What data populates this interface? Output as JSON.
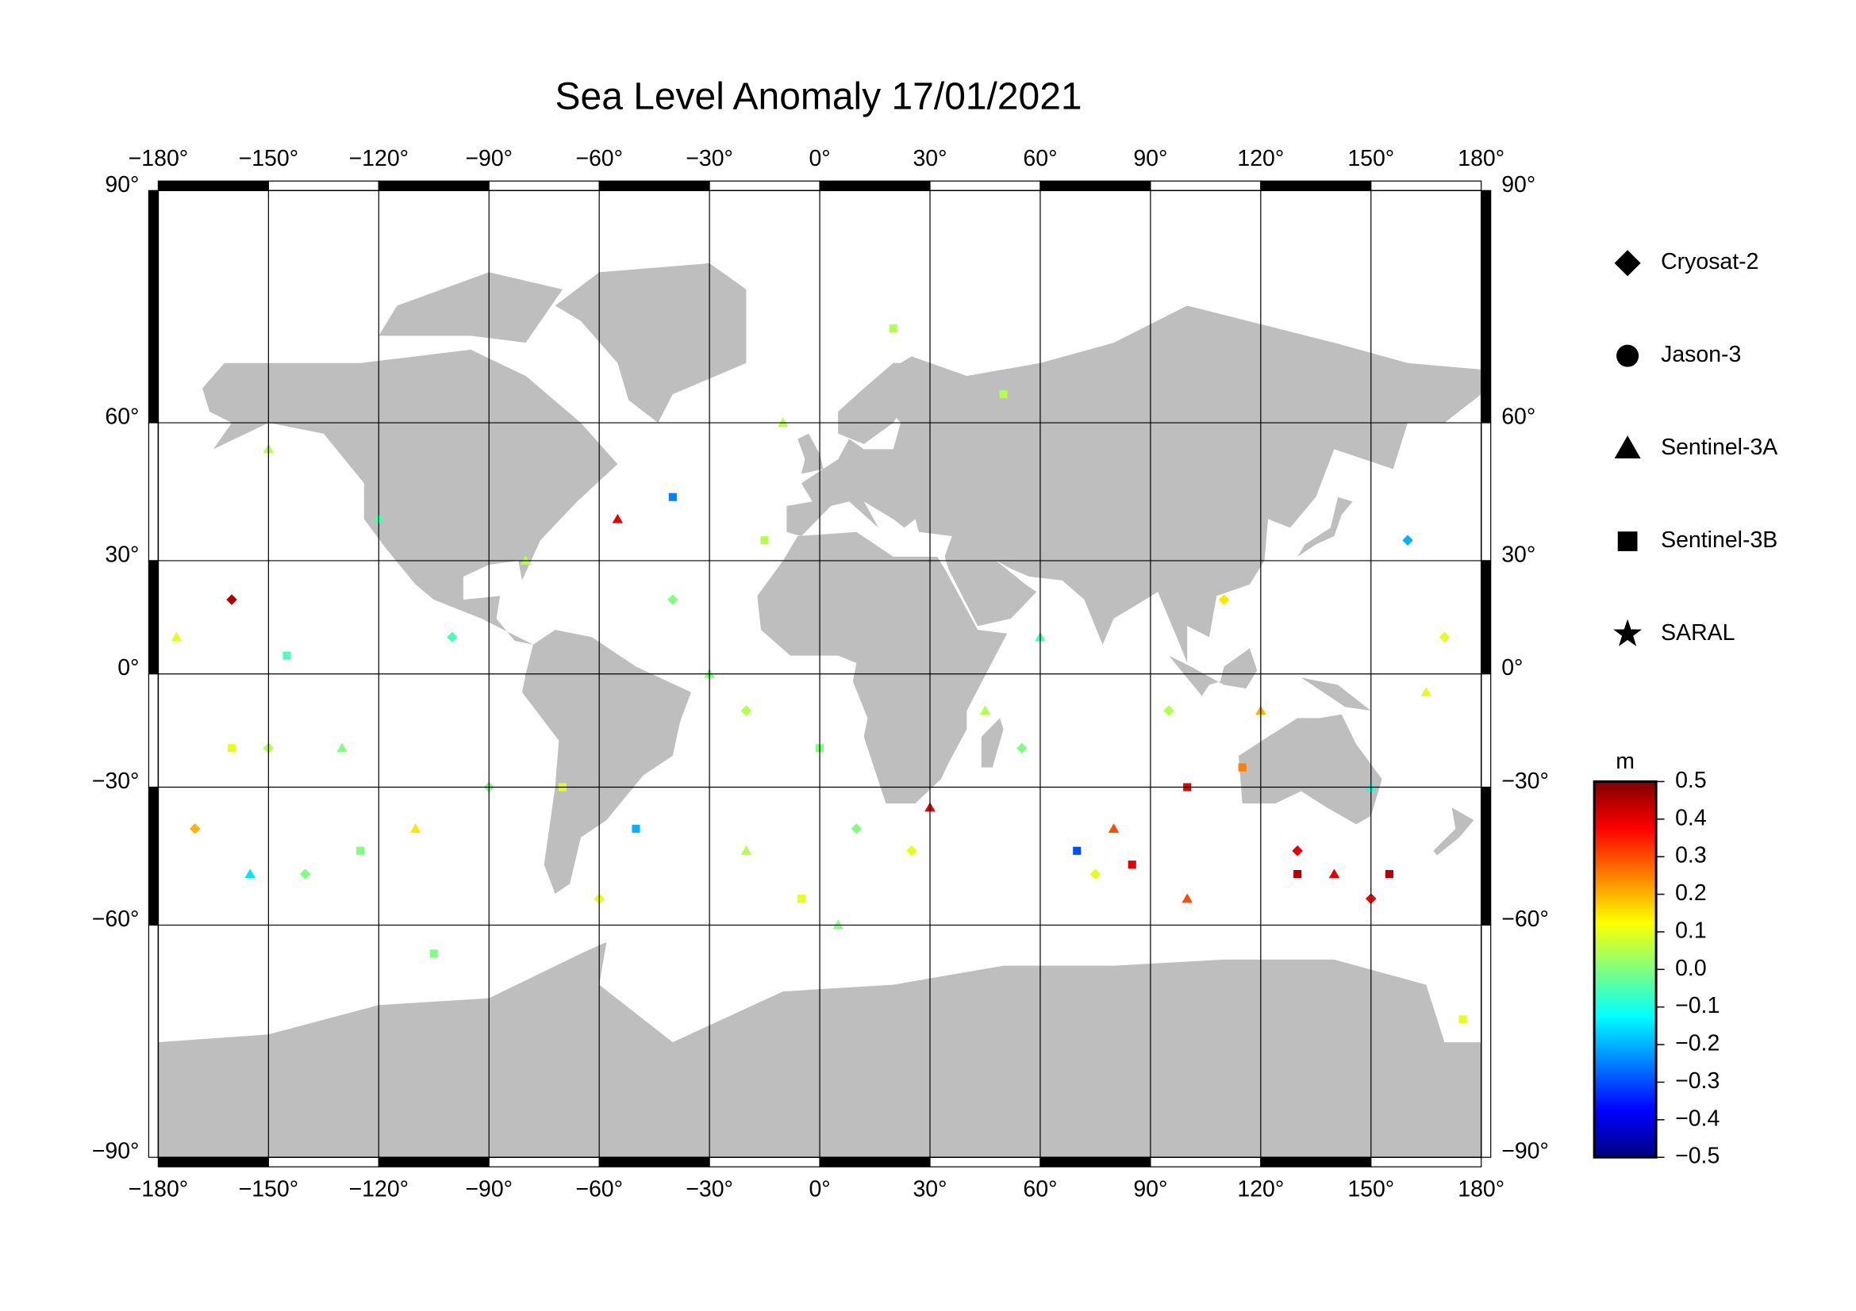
{
  "chart_data": {
    "type": "scatter-map",
    "title": "Sea Level Anomaly 17/01/2021",
    "projection": "miller",
    "xlim": [
      -180,
      180
    ],
    "ylim": [
      -90,
      90
    ],
    "xticks": [
      {
        "value": -180,
        "label": "−180°"
      },
      {
        "value": -150,
        "label": "−150°"
      },
      {
        "value": -120,
        "label": "−120°"
      },
      {
        "value": -90,
        "label": "−90°"
      },
      {
        "value": -60,
        "label": "−60°"
      },
      {
        "value": -30,
        "label": "−30°"
      },
      {
        "value": 0,
        "label": "0°"
      },
      {
        "value": 30,
        "label": "30°"
      },
      {
        "value": 60,
        "label": "60°"
      },
      {
        "value": 90,
        "label": "90°"
      },
      {
        "value": 120,
        "label": "120°"
      },
      {
        "value": 150,
        "label": "150°"
      },
      {
        "value": 180,
        "label": "180°"
      }
    ],
    "yticks": [
      {
        "value": 90,
        "label": "90°"
      },
      {
        "value": 60,
        "label": "60°"
      },
      {
        "value": 30,
        "label": "30°"
      },
      {
        "value": 0,
        "label": "0°"
      },
      {
        "value": -30,
        "label": "−30°"
      },
      {
        "value": -60,
        "label": "−60°"
      },
      {
        "value": -90,
        "label": "−90°"
      }
    ],
    "grid": true,
    "land_color": "#bebebe",
    "colorbar": {
      "label": "m",
      "lim": [
        -0.5,
        0.5
      ],
      "ticks": [
        0.5,
        0.4,
        0.3,
        0.2,
        0.1,
        {
          "value": 0,
          "label": "0.0"
        },
        {
          "value": -0.1,
          "label": "−0.1"
        },
        {
          "value": -0.2,
          "label": "−0.2"
        },
        {
          "value": -0.3,
          "label": "−0.3"
        },
        {
          "value": -0.4,
          "label": "−0.4"
        },
        {
          "value": -0.5,
          "label": "−0.5"
        }
      ],
      "colormap": [
        "#000080",
        "#0000ff",
        "#0080ff",
        "#00ffff",
        "#80ff80",
        "#ffff00",
        "#ff8000",
        "#ff0000",
        "#800000"
      ]
    },
    "series": [
      {
        "name": "Cryosat-2",
        "marker": "diamond",
        "lon": [
          -160,
          -170,
          -150,
          -140,
          -100,
          -90,
          -60,
          -40,
          -20,
          10,
          25,
          55,
          75,
          95,
          130,
          150,
          160,
          170,
          110,
          -120
        ],
        "lat": [
          20,
          -40,
          -20,
          -50,
          10,
          -30,
          -55,
          20,
          -10,
          -40,
          -45,
          -20,
          -50,
          -10,
          -45,
          -55,
          35,
          10,
          20,
          40
        ],
        "values": [
          0.45,
          0.2,
          0.05,
          0.0,
          -0.05,
          0.0,
          0.1,
          0.0,
          0.05,
          0.0,
          0.1,
          0.0,
          0.1,
          0.05,
          0.4,
          0.4,
          -0.2,
          0.1,
          0.15,
          -0.05
        ]
      },
      {
        "name": "Jason-3",
        "marker": "circle",
        "lon": [],
        "lat": [],
        "values": []
      },
      {
        "name": "Sentinel-3A",
        "marker": "triangle",
        "lon": [
          -175,
          -155,
          -130,
          -110,
          -80,
          -55,
          -30,
          -10,
          5,
          30,
          45,
          60,
          80,
          100,
          140,
          150,
          165,
          -150,
          120,
          -20
        ],
        "lat": [
          10,
          -50,
          -20,
          -40,
          30,
          40,
          0,
          60,
          -60,
          -35,
          -10,
          10,
          -40,
          -55,
          -50,
          -30,
          -5,
          55,
          -10,
          -45
        ],
        "values": [
          0.1,
          -0.15,
          0.0,
          0.15,
          0.05,
          0.4,
          0.0,
          0.05,
          0.0,
          0.4,
          0.05,
          -0.05,
          0.3,
          0.3,
          0.4,
          -0.1,
          0.1,
          0.05,
          0.2,
          0.05
        ]
      },
      {
        "name": "Sentinel-3B",
        "marker": "square",
        "lon": [
          -160,
          -145,
          -125,
          -105,
          -70,
          -50,
          -40,
          -15,
          0,
          20,
          70,
          85,
          100,
          115,
          130,
          155,
          175,
          50,
          -5
        ],
        "lat": [
          -20,
          5,
          -45,
          -65,
          -30,
          -40,
          45,
          35,
          -20,
          75,
          -45,
          -48,
          -30,
          -25,
          -50,
          -50,
          -75,
          65,
          -55
        ],
        "values": [
          0.1,
          -0.05,
          0.0,
          0.0,
          0.1,
          -0.2,
          -0.25,
          0.05,
          0.0,
          0.05,
          -0.3,
          0.4,
          0.4,
          0.25,
          0.45,
          0.45,
          0.1,
          0.05,
          0.1
        ]
      },
      {
        "name": "SARAL",
        "marker": "star",
        "lon": [],
        "lat": [],
        "values": []
      }
    ]
  }
}
